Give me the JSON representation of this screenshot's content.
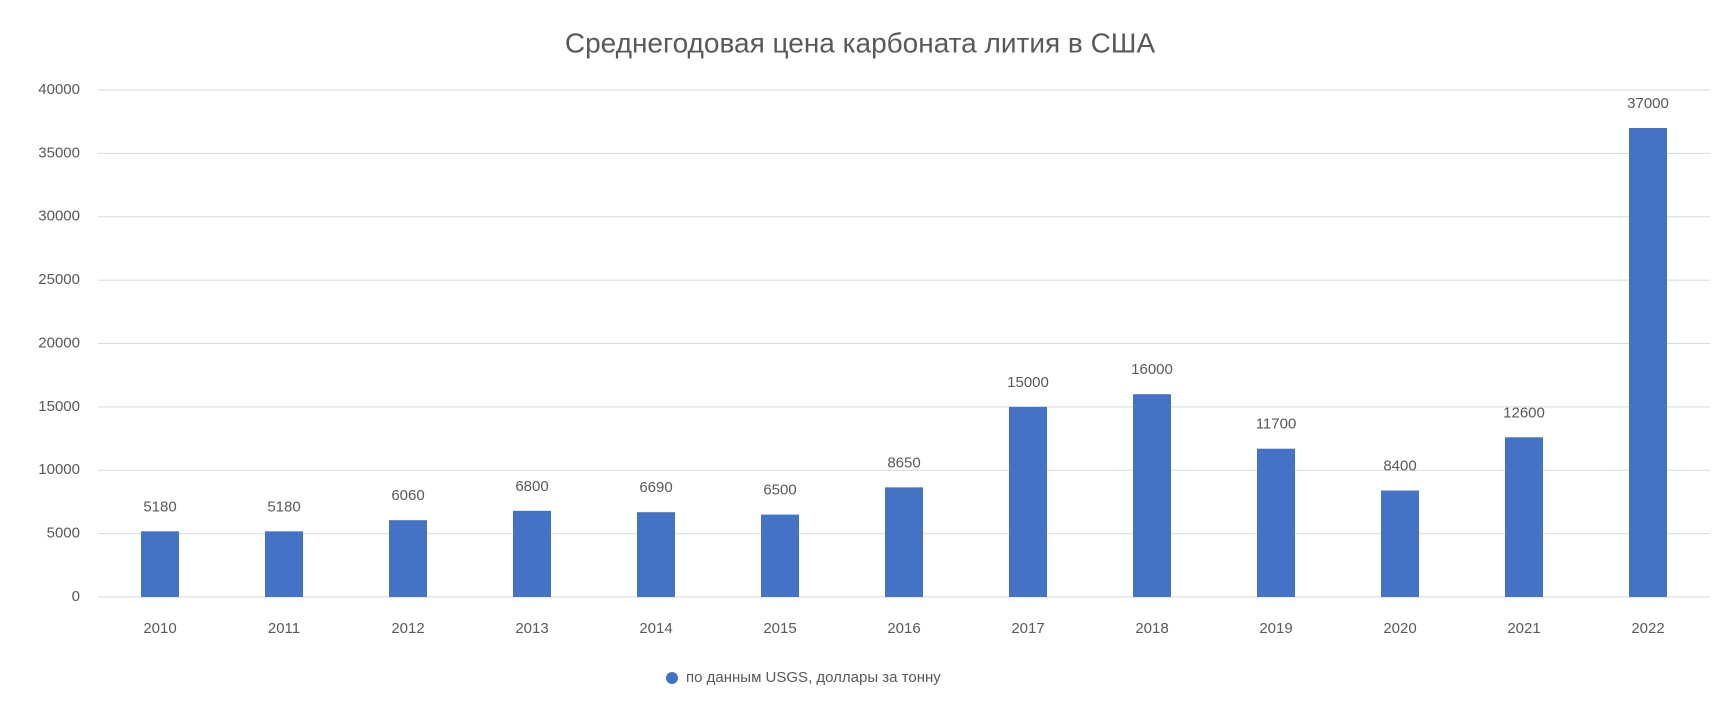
{
  "chart_data": {
    "type": "bar",
    "title": "Среднегодовая цена карбоната лития в США",
    "categories": [
      "2010",
      "2011",
      "2012",
      "2013",
      "2014",
      "2015",
      "2016",
      "2017",
      "2018",
      "2019",
      "2020",
      "2021",
      "2022"
    ],
    "series": [
      {
        "name": "по данным USGS, доллары за тонну",
        "color": "#4472c4",
        "values": [
          5180,
          5180,
          6060,
          6800,
          6690,
          6500,
          8650,
          15000,
          16000,
          11700,
          8400,
          12600,
          37000
        ]
      }
    ],
    "ylim": [
      0,
      40000
    ],
    "yticks": [
      0,
      5000,
      10000,
      15000,
      20000,
      25000,
      30000,
      35000,
      40000
    ],
    "grid": true,
    "legend": "bottom"
  }
}
